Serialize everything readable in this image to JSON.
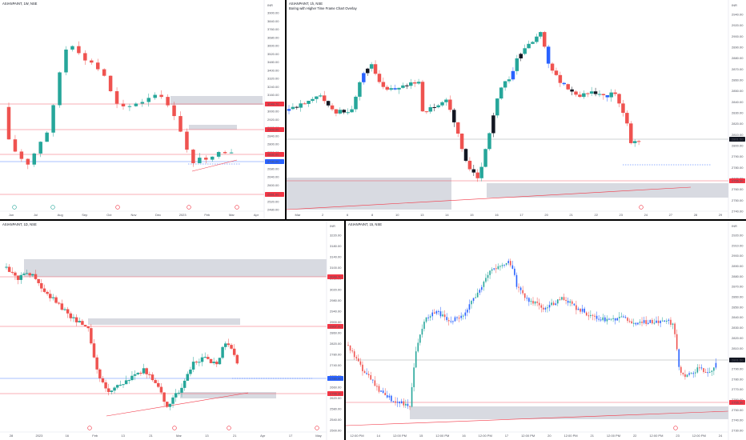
{
  "colors": {
    "up": "#26a69a",
    "down": "#ef5350",
    "dark": "#131722",
    "blue": "#2962ff",
    "zone": "#d1d4dc",
    "red": "#f23645"
  },
  "panels": [
    {
      "id": "p1",
      "title": "ASIANPAINT, 1W, NSE",
      "subtitle": "",
      "y_labels": [
        "3900.00",
        "3840.00",
        "3760.00",
        "3680.00",
        "3600.00",
        "3520.00",
        "3480.00",
        "3400.00",
        "3320.00",
        "3240.00",
        "3160.00",
        "3080.00",
        "3000.00",
        "2920.00",
        "2880.00",
        "2840.00",
        "2800.00",
        "2760.00",
        "2720.00",
        "2680.00",
        "2640.00",
        "2600.00",
        "2560.00",
        "2520.00",
        "2480.00"
      ],
      "y_top_label": "INR",
      "price_tags": [
        {
          "text": "3049.70",
          "color": "#f23645"
        },
        {
          "text": "2909.00",
          "color": "#f23645"
        },
        {
          "text": "2832.00",
          "color": "#f23645"
        },
        {
          "text": "2790.00",
          "color": "#2962ff"
        },
        {
          "text": "2561.00",
          "color": "#f23645"
        }
      ],
      "x_labels": [
        "Jun",
        "Jul",
        "Aug",
        "Sep",
        "Oct",
        "Nov",
        "Dec",
        "2023",
        "Feb",
        "Mar",
        "Apr"
      ]
    },
    {
      "id": "p2",
      "title": "ASIANPAINT, 1h, NSE",
      "subtitle": "Boring with Higher Time Frame Chart Overlay",
      "y_labels": [
        "2940.00",
        "2920.00",
        "2900.00",
        "2890.00",
        "2880.00",
        "2870.00",
        "2860.00",
        "2850.00",
        "2840.00",
        "2830.00",
        "2820.00",
        "2810.00",
        "2800.00",
        "2790.00",
        "2780.00",
        "2770.00",
        "2760.00",
        "2750.00",
        "2740.00"
      ],
      "y_top_label": "INR",
      "price_tags": [
        {
          "text": "2801.50",
          "color": "#131722"
        },
        {
          "text": "2755.30",
          "color": "#f23645"
        }
      ],
      "x_labels": [
        "Mar",
        "2",
        "6",
        "8",
        "10",
        "13",
        "14",
        "15",
        "16",
        "17",
        "20",
        "21",
        "22",
        "23",
        "24",
        "27",
        "28",
        "29"
      ]
    },
    {
      "id": "p3",
      "title": "ASIANPAINT, 1D, NSE",
      "subtitle": "",
      "y_labels": [
        "3220.00",
        "3180.00",
        "3140.00",
        "3100.00",
        "3060.00",
        "3020.00",
        "2980.00",
        "2940.00",
        "2900.00",
        "2860.00",
        "2820.00",
        "2780.00",
        "2740.00",
        "2700.00",
        "2660.00",
        "2620.00",
        "2580.00",
        "2540.00",
        "2500.00"
      ],
      "y_top_label": "INR",
      "price_tags": [
        {
          "text": "3049.70",
          "color": "#f23645"
        },
        {
          "text": "2907.00",
          "color": "#f23645"
        },
        {
          "text": "2780.00",
          "color": "#2962ff"
        },
        {
          "text": "2755.30",
          "color": "#f23645"
        }
      ],
      "x_labels": [
        "28",
        "2023",
        "16",
        "Feb",
        "13",
        "21",
        "Mar",
        "13",
        "21",
        "Apr",
        "17",
        "May"
      ]
    },
    {
      "id": "p4",
      "title": "ASIANPAINT, 15, NSE",
      "subtitle": "",
      "y_labels": [
        "2920.00",
        "2910.00",
        "2900.00",
        "2890.00",
        "2880.00",
        "2870.00",
        "2860.00",
        "2850.00",
        "2840.00",
        "2830.00",
        "2820.00",
        "2810.00",
        "2800.00",
        "2790.00",
        "2780.00",
        "2770.00",
        "2760.00",
        "2750.00",
        "2740.00",
        "2730.00"
      ],
      "y_top_label": "INR",
      "price_tags": [
        {
          "text": "2801.50",
          "color": "#131722"
        },
        {
          "text": "2755.30",
          "color": "#f23645"
        }
      ],
      "x_labels": [
        "12:00 PM",
        "14",
        "12:00 PM",
        "15",
        "12:00 PM",
        "16",
        "12:00 PM",
        "17",
        "12:00 PM",
        "20",
        "12:00 PM",
        "21",
        "12:00 PM",
        "22",
        "12:00 PM",
        "23",
        "12:00 PM",
        "24"
      ]
    }
  ]
}
